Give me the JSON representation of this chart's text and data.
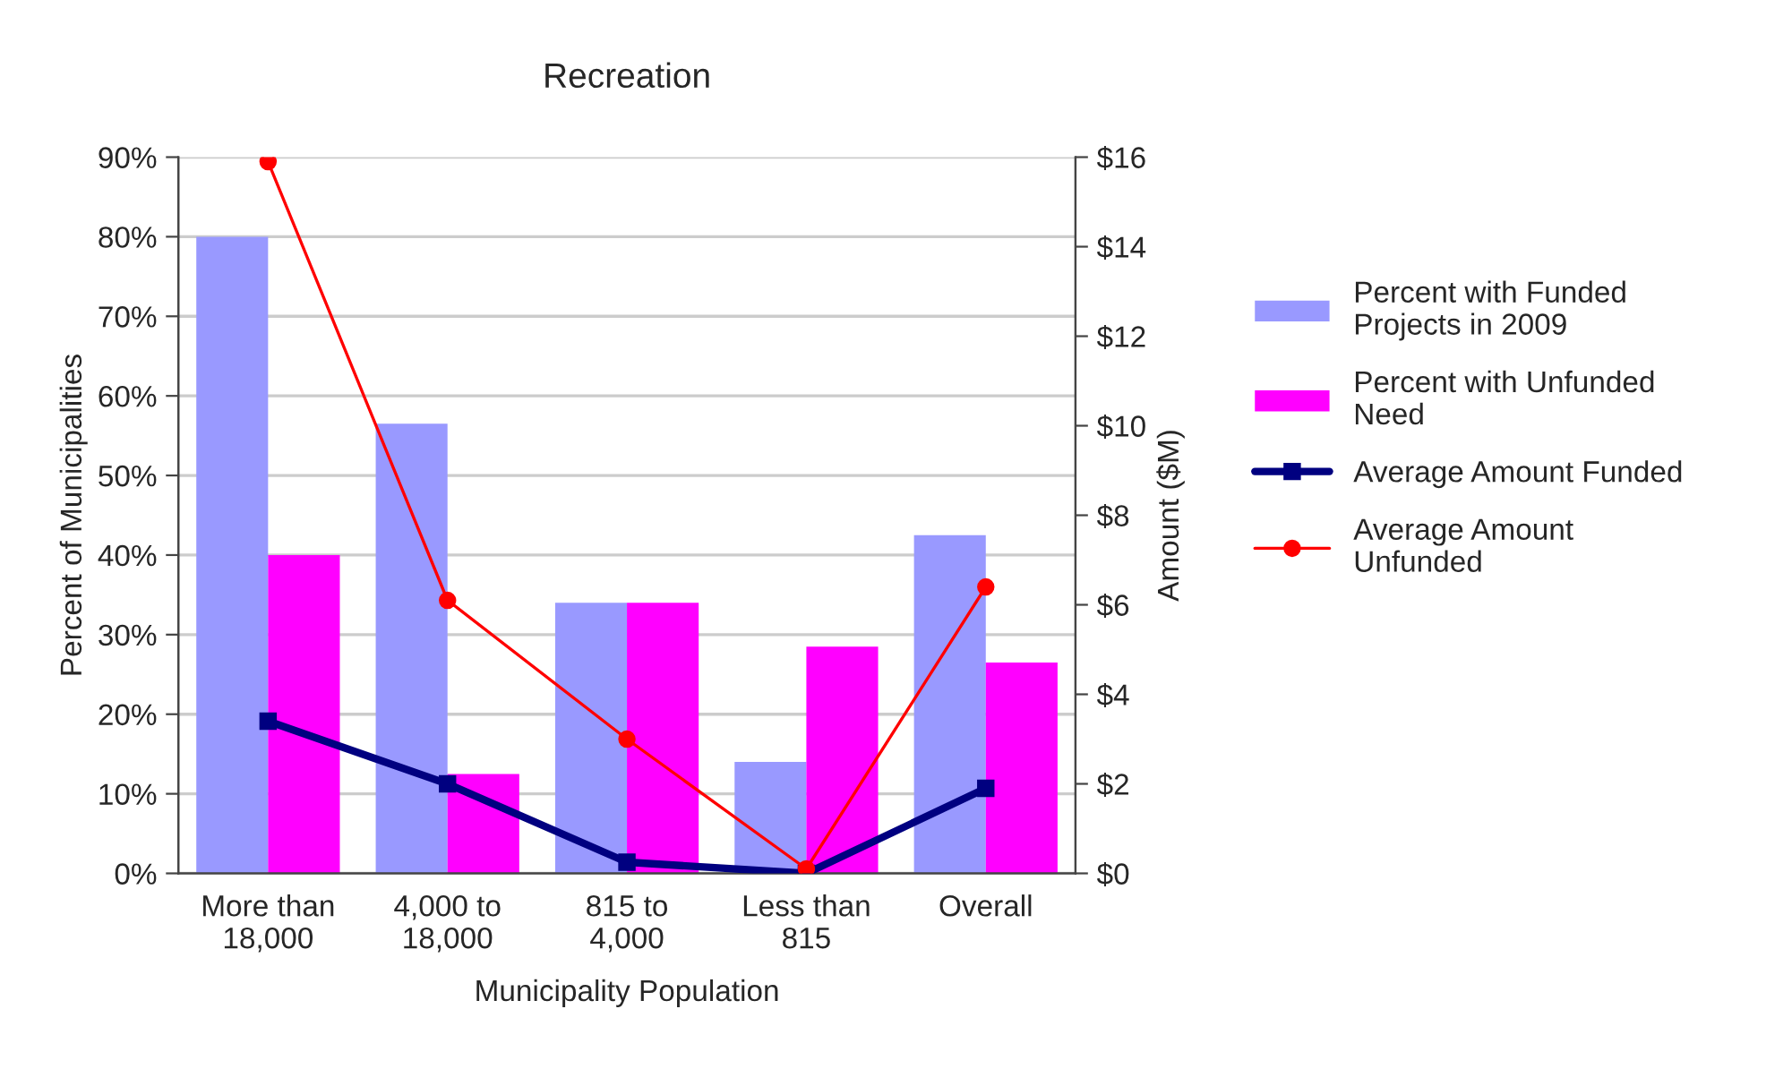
{
  "chart_data": {
    "type": "bar",
    "title": "Recreation",
    "xlabel": "Municipality Population",
    "ylabel": "Percent of Municipalities",
    "y2label": "Amount ($M)",
    "categories": [
      "More than\n18,000",
      "4,000 to\n18,000",
      "815 to\n4,000",
      "Less than\n815",
      "Overall"
    ],
    "series": [
      {
        "name": "Percent with Funded\nProjects in 2009",
        "color": "#9999ff",
        "values": [
          80,
          56.5,
          34,
          14,
          42.5
        ]
      },
      {
        "name": "Percent with Unfunded\nNeed",
        "color": "#ff00ff",
        "values": [
          40,
          12.5,
          34,
          28.5,
          26.5
        ]
      },
      {
        "name": "Average Amount Funded",
        "type": "line",
        "axis": "y2",
        "color": "#000080",
        "marker": "square",
        "values": [
          3.4,
          2.0,
          0.25,
          0.0,
          1.9
        ]
      },
      {
        "name": "Average Amount\nUnfunded",
        "type": "line",
        "axis": "y2",
        "color": "#ff0000",
        "marker": "circle",
        "values": [
          15.9,
          6.1,
          3.0,
          0.1,
          6.4
        ]
      }
    ],
    "ylim": [
      0,
      90
    ],
    "yticks": [
      {
        "value": 0,
        "label": "0%"
      },
      {
        "value": 10,
        "label": "10%"
      },
      {
        "value": 20,
        "label": "20%"
      },
      {
        "value": 30,
        "label": "30%"
      },
      {
        "value": 40,
        "label": "40%"
      },
      {
        "value": 50,
        "label": "50%"
      },
      {
        "value": 60,
        "label": "60%"
      },
      {
        "value": 70,
        "label": "70%"
      },
      {
        "value": 80,
        "label": "80%"
      },
      {
        "value": 90,
        "label": "90%"
      }
    ],
    "y2lim": [
      0,
      16
    ],
    "y2ticks": [
      {
        "value": 0,
        "label": "$0"
      },
      {
        "value": 2,
        "label": "$2"
      },
      {
        "value": 4,
        "label": "$4"
      },
      {
        "value": 6,
        "label": "$6"
      },
      {
        "value": 8,
        "label": "$8"
      },
      {
        "value": 10,
        "label": "$10"
      },
      {
        "value": 12,
        "label": "$12"
      },
      {
        "value": 14,
        "label": "$14"
      },
      {
        "value": 16,
        "label": "$16"
      }
    ],
    "grid": "y",
    "legend": "right"
  }
}
